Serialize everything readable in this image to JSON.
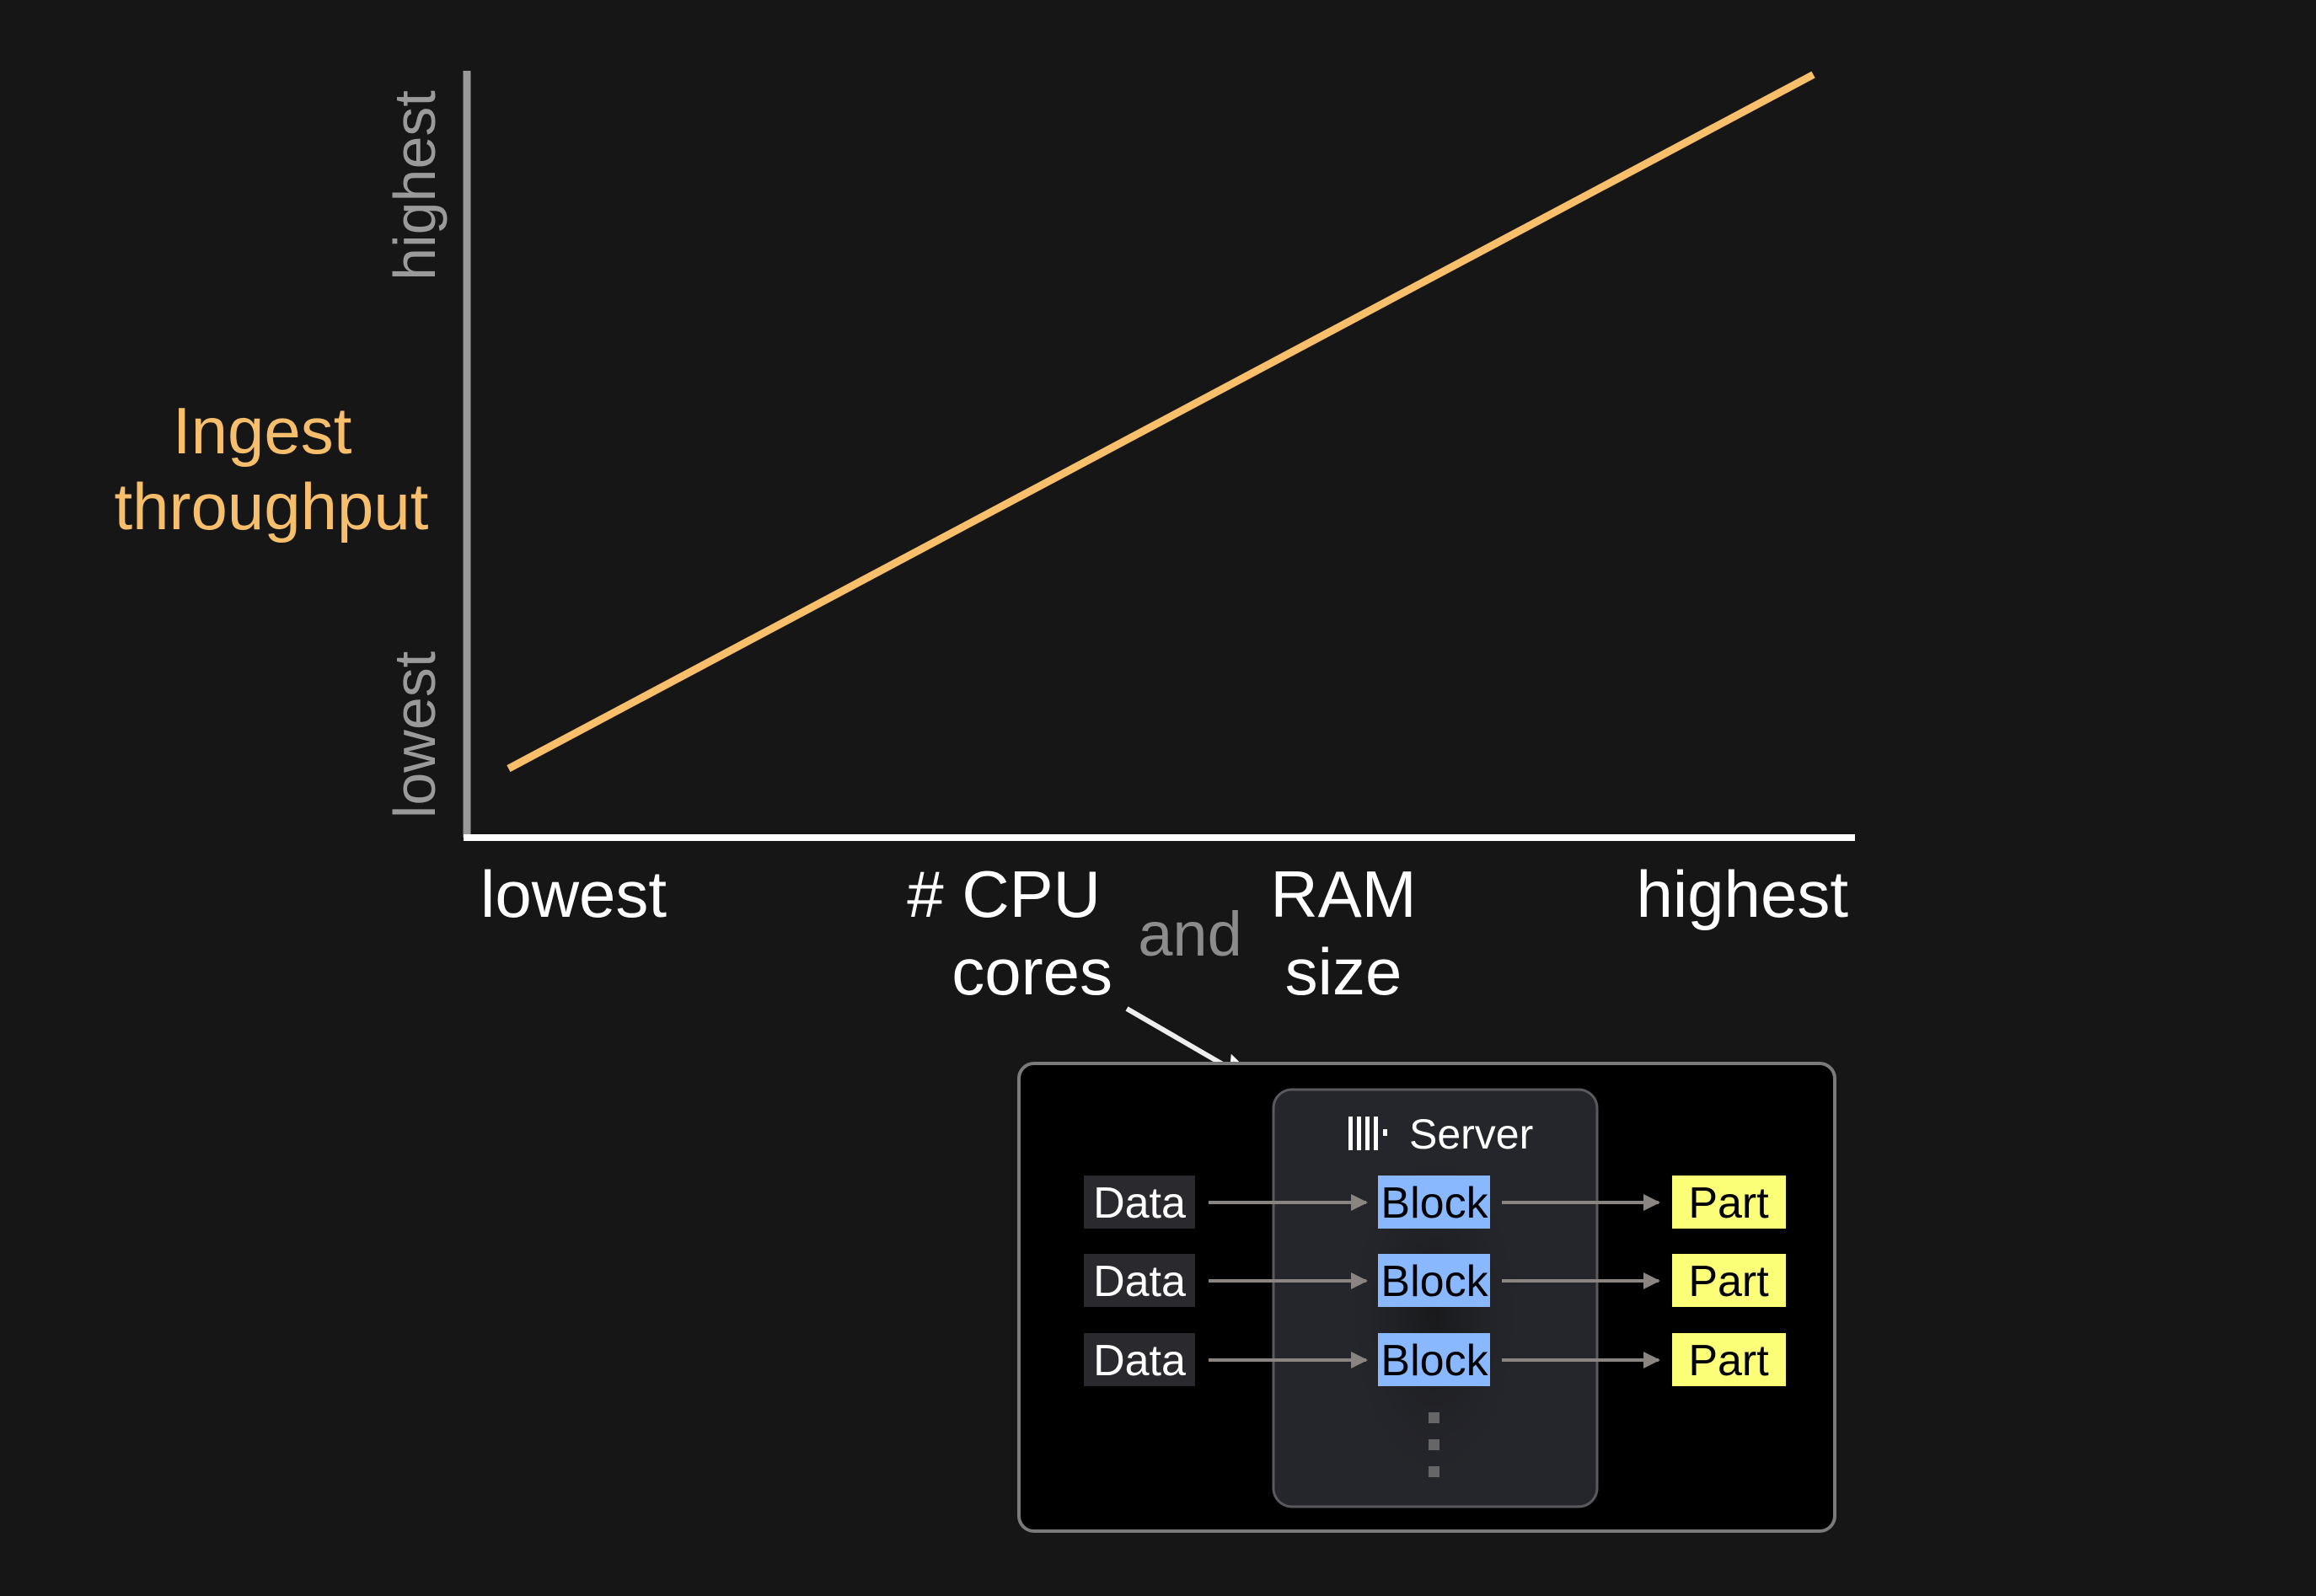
{
  "chart_data": {
    "type": "line",
    "ylabel": "Ingest throughput",
    "xlabel_parts": [
      "# CPU",
      "cores",
      "and",
      "RAM",
      "size"
    ],
    "x_ticks": [
      "lowest",
      "highest"
    ],
    "y_ticks": [
      "lowest",
      "highest"
    ],
    "xlim": [
      0,
      1
    ],
    "ylim": [
      0,
      1
    ],
    "grid": false,
    "series": [
      {
        "x": [
          0.03,
          0.97
        ],
        "y": [
          0.09,
          0.995
        ],
        "color": "#f9bf6b"
      }
    ]
  },
  "colors": {
    "background": "#161616",
    "accent": "#f9bf6b",
    "block": "#8ab8ff",
    "part": "#fbff77",
    "data_box": "#2a2a2e"
  },
  "diagram": {
    "server_label": "Server",
    "server_icon": "clickhouse-bars-icon",
    "rows": [
      {
        "data": "Data",
        "block": "Block",
        "part": "Part"
      },
      {
        "data": "Data",
        "block": "Block",
        "part": "Part"
      },
      {
        "data": "Data",
        "block": "Block",
        "part": "Part"
      }
    ]
  }
}
